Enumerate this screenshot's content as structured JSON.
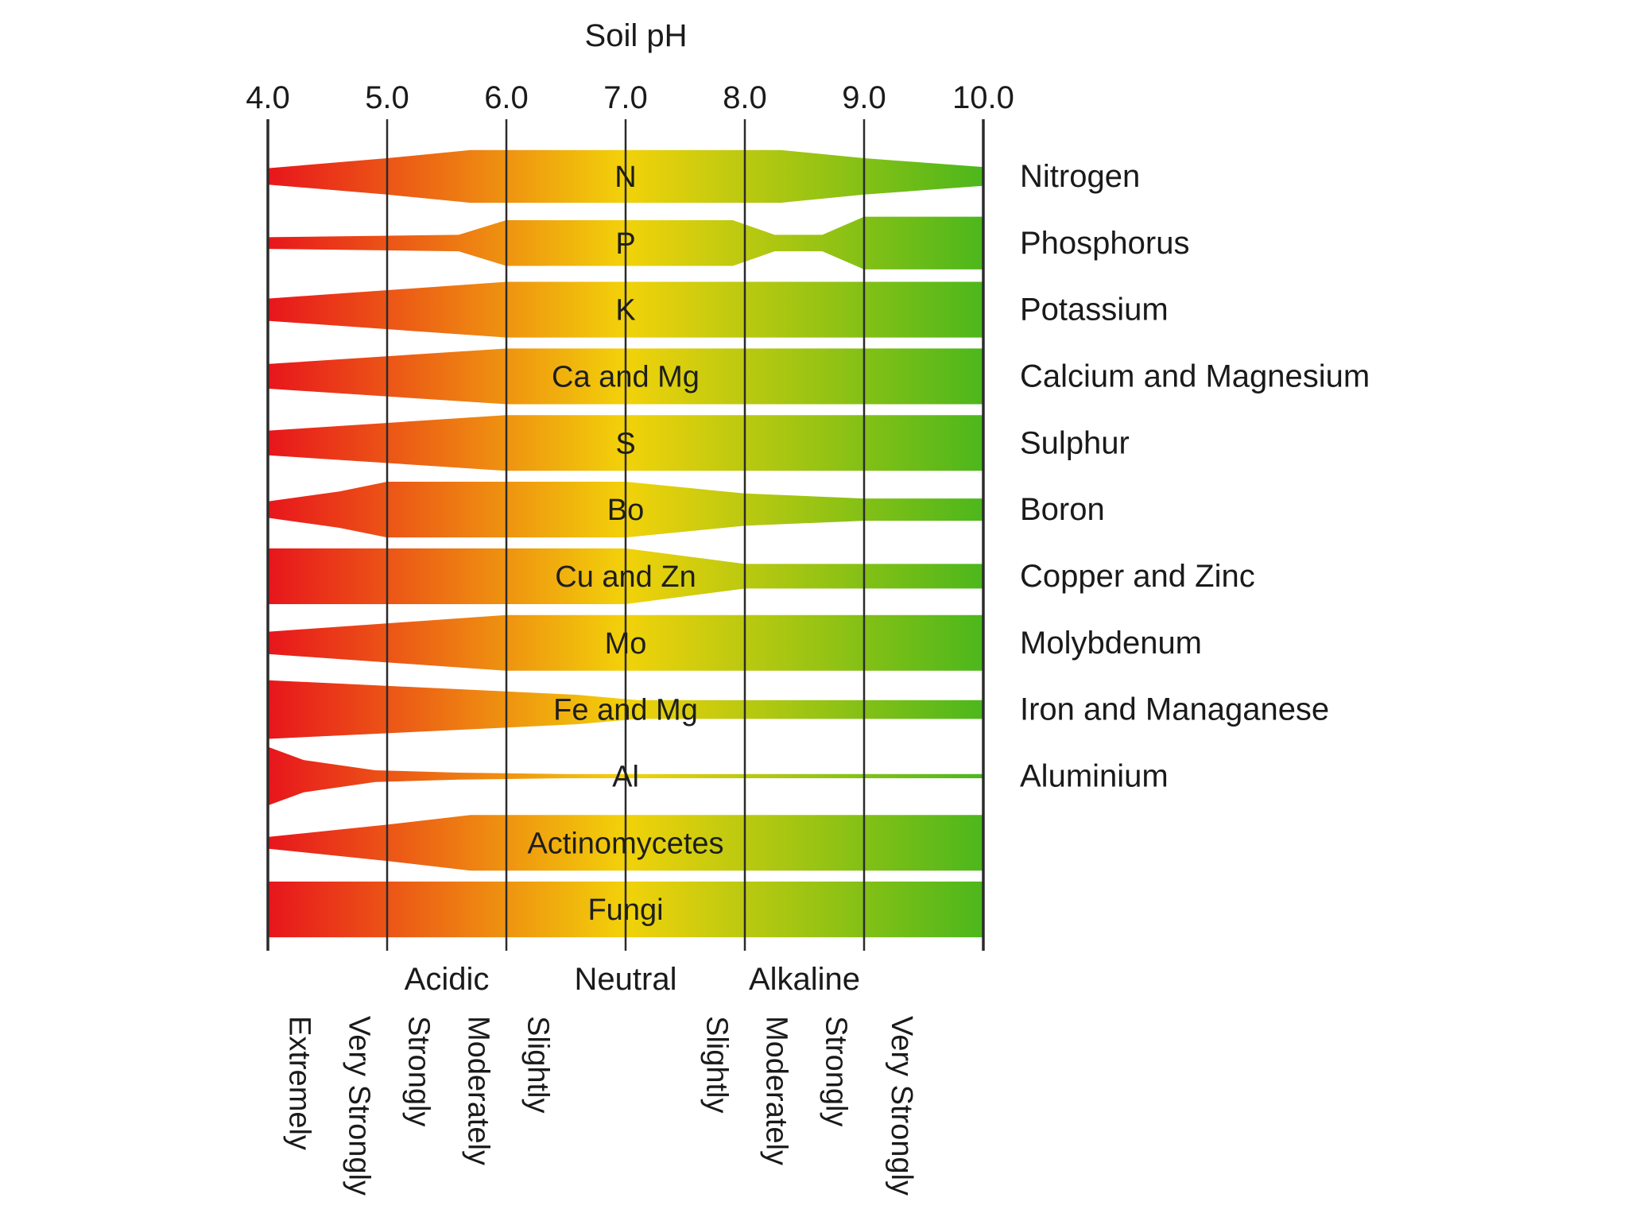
{
  "chart_data": {
    "type": "band-width",
    "title": "Soil pH",
    "xlim": [
      4.0,
      10.0
    ],
    "x_ticks": [
      "4.0",
      "5.0",
      "6.0",
      "7.0",
      "8.0",
      "9.0",
      "10.0"
    ],
    "colors": {
      "acid": "#e8151c",
      "mid": "#f2d20a",
      "alkaline": "#4cb71c"
    },
    "bands": [
      {
        "abbr": "N",
        "name": "Nitrogen",
        "profile": [
          [
            4.0,
            0.28
          ],
          [
            5.0,
            0.62
          ],
          [
            5.7,
            0.9
          ],
          [
            8.3,
            0.9
          ],
          [
            9.0,
            0.62
          ],
          [
            10.0,
            0.32
          ]
        ]
      },
      {
        "abbr": "P",
        "name": "Phosphorus",
        "profile": [
          [
            4.0,
            0.2
          ],
          [
            5.6,
            0.28
          ],
          [
            6.0,
            0.78
          ],
          [
            7.9,
            0.78
          ],
          [
            8.25,
            0.28
          ],
          [
            8.65,
            0.28
          ],
          [
            9.0,
            0.9
          ],
          [
            10.0,
            0.9
          ]
        ]
      },
      {
        "abbr": "K",
        "name": "Potassium",
        "profile": [
          [
            4.0,
            0.38
          ],
          [
            6.0,
            0.95
          ],
          [
            10.0,
            0.95
          ]
        ]
      },
      {
        "abbr": "Ca and Mg",
        "name": "Calcium and Magnesium",
        "profile": [
          [
            4.0,
            0.42
          ],
          [
            6.0,
            0.95
          ],
          [
            10.0,
            0.95
          ]
        ]
      },
      {
        "abbr": "S",
        "name": "Sulphur",
        "profile": [
          [
            4.0,
            0.42
          ],
          [
            6.0,
            0.95
          ],
          [
            10.0,
            0.95
          ]
        ]
      },
      {
        "abbr": "Bo",
        "name": "Boron",
        "profile": [
          [
            4.0,
            0.28
          ],
          [
            4.6,
            0.62
          ],
          [
            5.0,
            0.95
          ],
          [
            7.0,
            0.95
          ],
          [
            8.0,
            0.55
          ],
          [
            9.0,
            0.38
          ],
          [
            10.0,
            0.38
          ]
        ]
      },
      {
        "abbr": "Cu and Zn",
        "name": "Copper and Zinc",
        "profile": [
          [
            4.0,
            0.95
          ],
          [
            7.0,
            0.95
          ],
          [
            8.0,
            0.42
          ],
          [
            10.0,
            0.42
          ]
        ]
      },
      {
        "abbr": "Mo",
        "name": "Molybdenum",
        "profile": [
          [
            4.0,
            0.38
          ],
          [
            6.0,
            0.95
          ],
          [
            10.0,
            0.95
          ]
        ]
      },
      {
        "abbr": "Fe and Mg",
        "name": "Iron and Managanese",
        "profile": [
          [
            4.0,
            1.0
          ],
          [
            6.6,
            0.5
          ],
          [
            7.1,
            0.32
          ],
          [
            10.0,
            0.32
          ]
        ]
      },
      {
        "abbr": "Al",
        "name": "Aluminium",
        "profile": [
          [
            4.0,
            1.0
          ],
          [
            4.3,
            0.55
          ],
          [
            4.9,
            0.2
          ],
          [
            5.6,
            0.12
          ],
          [
            6.5,
            0.07
          ],
          [
            10.0,
            0.07
          ]
        ]
      },
      {
        "abbr": "Actinomycetes",
        "name": "",
        "profile": [
          [
            4.0,
            0.2
          ],
          [
            5.0,
            0.62
          ],
          [
            5.7,
            0.95
          ],
          [
            10.0,
            0.95
          ]
        ]
      },
      {
        "abbr": "Fungi",
        "name": "",
        "profile": [
          [
            4.0,
            0.95
          ],
          [
            10.0,
            0.95
          ]
        ]
      }
    ],
    "classes": [
      {
        "label": "Acidic",
        "x": 5.5
      },
      {
        "label": "Neutral",
        "x": 7.0
      },
      {
        "label": "Alkaline",
        "x": 8.5
      }
    ],
    "sub_classes": [
      {
        "label": "Extremely",
        "x": 4.25
      },
      {
        "label": "Very Strongly",
        "x": 4.75
      },
      {
        "label": "Strongly",
        "x": 5.25
      },
      {
        "label": "Moderately",
        "x": 5.75
      },
      {
        "label": "Slightly",
        "x": 6.25
      },
      {
        "label": "Slightly",
        "x": 7.75
      },
      {
        "label": "Moderately",
        "x": 8.25
      },
      {
        "label": "Strongly",
        "x": 8.75
      },
      {
        "label": "Very Strongly",
        "x": 9.3
      }
    ]
  }
}
